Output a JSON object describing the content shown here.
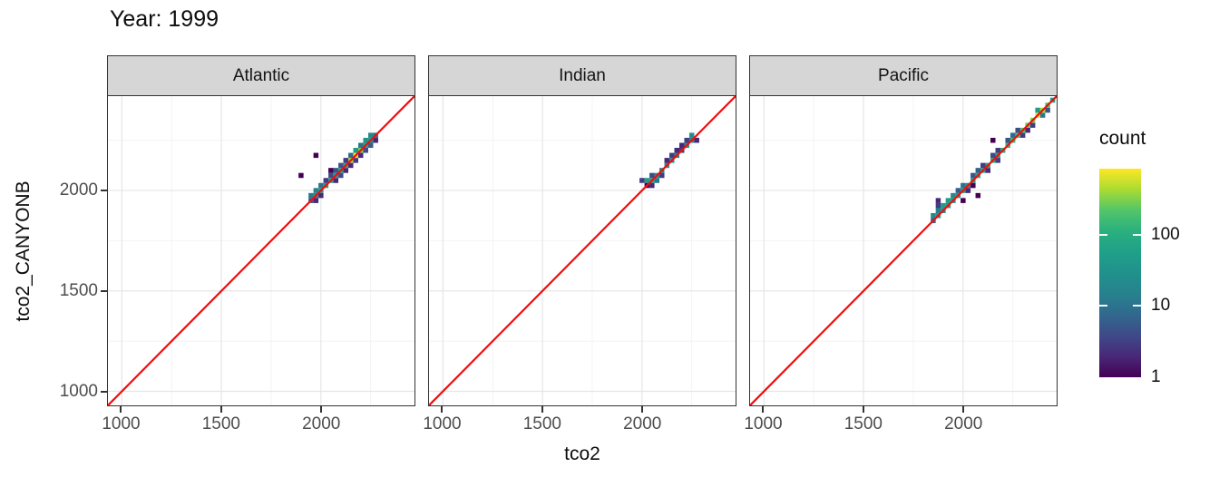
{
  "chart_data": {
    "type": "heatmap",
    "subtype": "geom_bin2d_facets",
    "title": "Year: 1999",
    "xlabel": "tco2",
    "ylabel": "tco2_CANYONB",
    "facets": [
      "Atlantic",
      "Indian",
      "Pacific"
    ],
    "x_ticks": [
      1000,
      1500,
      2000
    ],
    "y_ticks": [
      1000,
      1500,
      2000
    ],
    "minor_gridlines": [
      1250,
      1750,
      2250
    ],
    "xlim": [
      930,
      2470
    ],
    "ylim": [
      930,
      2470
    ],
    "binwidth": 25,
    "grid": true,
    "identity_line": {
      "slope": 1,
      "intercept": 0,
      "color": "#f20d0d"
    },
    "legend": {
      "title": "count",
      "position": "right",
      "scale": "log10",
      "max": 850,
      "ticks": [
        100,
        10,
        1
      ],
      "tick_labels": [
        "100",
        "10",
        "1"
      ],
      "palette": "viridis"
    },
    "panels": [
      {
        "facet": "Atlantic",
        "bins": [
          [
            1950,
            1950,
            5
          ],
          [
            1950,
            1975,
            12
          ],
          [
            1975,
            1975,
            30
          ],
          [
            1975,
            2000,
            15
          ],
          [
            1975,
            1950,
            2
          ],
          [
            2000,
            1975,
            2
          ],
          [
            2000,
            2000,
            40
          ],
          [
            2000,
            2025,
            10
          ],
          [
            2025,
            2025,
            55
          ],
          [
            2025,
            2050,
            3
          ],
          [
            2050,
            2050,
            50
          ],
          [
            2050,
            2075,
            4
          ],
          [
            2050,
            2100,
            1
          ],
          [
            2075,
            2050,
            2
          ],
          [
            2075,
            2075,
            65
          ],
          [
            2075,
            2100,
            5
          ],
          [
            2100,
            2075,
            4
          ],
          [
            2100,
            2100,
            75
          ],
          [
            2100,
            2125,
            5
          ],
          [
            2125,
            2100,
            2
          ],
          [
            2125,
            2125,
            110
          ],
          [
            2125,
            2150,
            3
          ],
          [
            2150,
            2125,
            2
          ],
          [
            2150,
            2150,
            400
          ],
          [
            2150,
            2175,
            8
          ],
          [
            2175,
            2150,
            3
          ],
          [
            2175,
            2175,
            850
          ],
          [
            2175,
            2200,
            40
          ],
          [
            2200,
            2175,
            2
          ],
          [
            2200,
            2200,
            300
          ],
          [
            2200,
            2225,
            10
          ],
          [
            2225,
            2200,
            4
          ],
          [
            2225,
            2225,
            80
          ],
          [
            2225,
            2250,
            30
          ],
          [
            2250,
            2225,
            6
          ],
          [
            2250,
            2250,
            45
          ],
          [
            2250,
            2275,
            20
          ],
          [
            2275,
            2250,
            2
          ],
          [
            2275,
            2275,
            10
          ],
          [
            1900,
            2075,
            1
          ],
          [
            1975,
            2175,
            1
          ]
        ]
      },
      {
        "facet": "Indian",
        "bins": [
          [
            2000,
            2050,
            3
          ],
          [
            2025,
            2050,
            45
          ],
          [
            2025,
            2025,
            1
          ],
          [
            2050,
            2050,
            70
          ],
          [
            2050,
            2025,
            2
          ],
          [
            2050,
            2075,
            4
          ],
          [
            2075,
            2050,
            12
          ],
          [
            2075,
            2075,
            40
          ],
          [
            2100,
            2075,
            3
          ],
          [
            2100,
            2100,
            18
          ],
          [
            2125,
            2125,
            30
          ],
          [
            2125,
            2150,
            2
          ],
          [
            2150,
            2150,
            35
          ],
          [
            2150,
            2175,
            3
          ],
          [
            2175,
            2175,
            22
          ],
          [
            2175,
            2200,
            2
          ],
          [
            2200,
            2200,
            3
          ],
          [
            2200,
            2225,
            2
          ],
          [
            2225,
            2225,
            35
          ],
          [
            2225,
            2250,
            3
          ],
          [
            2250,
            2250,
            15
          ],
          [
            2250,
            2275,
            28
          ],
          [
            2275,
            2250,
            2
          ]
        ]
      },
      {
        "facet": "Pacific",
        "bins": [
          [
            1850,
            1850,
            8
          ],
          [
            1850,
            1875,
            20
          ],
          [
            1875,
            1875,
            40
          ],
          [
            1875,
            1900,
            15
          ],
          [
            1875,
            1925,
            3
          ],
          [
            1875,
            1950,
            2
          ],
          [
            1900,
            1900,
            30
          ],
          [
            1900,
            1925,
            50
          ],
          [
            1925,
            1925,
            40
          ],
          [
            1925,
            1950,
            55
          ],
          [
            1950,
            1950,
            30
          ],
          [
            1950,
            1975,
            20
          ],
          [
            1975,
            1975,
            50
          ],
          [
            1975,
            2000,
            6
          ],
          [
            2000,
            1950,
            1
          ],
          [
            2000,
            2000,
            40
          ],
          [
            2000,
            2025,
            10
          ],
          [
            2025,
            2000,
            2
          ],
          [
            2025,
            2025,
            30
          ],
          [
            2050,
            2025,
            1
          ],
          [
            2050,
            2050,
            55
          ],
          [
            2050,
            2075,
            5
          ],
          [
            2075,
            1975,
            1
          ],
          [
            2075,
            2075,
            80
          ],
          [
            2075,
            2100,
            6
          ],
          [
            2100,
            2100,
            65
          ],
          [
            2100,
            2125,
            3
          ],
          [
            2125,
            2100,
            2
          ],
          [
            2125,
            2125,
            85
          ],
          [
            2150,
            2150,
            95
          ],
          [
            2150,
            2175,
            4
          ],
          [
            2150,
            2250,
            1
          ],
          [
            2175,
            2150,
            3
          ],
          [
            2175,
            2175,
            105
          ],
          [
            2175,
            2200,
            3
          ],
          [
            2200,
            2200,
            120
          ],
          [
            2225,
            2225,
            140
          ],
          [
            2225,
            2250,
            5
          ],
          [
            2250,
            2250,
            160
          ],
          [
            2250,
            2275,
            8
          ],
          [
            2275,
            2275,
            190
          ],
          [
            2275,
            2300,
            4
          ],
          [
            2300,
            2275,
            3
          ],
          [
            2300,
            2300,
            230
          ],
          [
            2325,
            2300,
            2
          ],
          [
            2325,
            2325,
            280
          ],
          [
            2350,
            2325,
            3
          ],
          [
            2350,
            2350,
            330
          ],
          [
            2375,
            2375,
            700
          ],
          [
            2375,
            2400,
            50
          ],
          [
            2400,
            2375,
            12
          ],
          [
            2400,
            2400,
            450
          ],
          [
            2425,
            2400,
            5
          ],
          [
            2425,
            2425,
            220
          ],
          [
            2450,
            2450,
            60
          ]
        ]
      }
    ]
  },
  "colors": {
    "background": "#ffffff",
    "panel_border": "#333333",
    "strip_fill": "#d6d6d6",
    "grid_major": "#e6e6e6",
    "grid_minor": "#efefef",
    "axis_text": "#4d4d4d",
    "tick_mark": "#333333",
    "identity_line": "#f20d0d",
    "viridis": [
      "#440154",
      "#482878",
      "#3e4a89",
      "#31688e",
      "#26828e",
      "#21918c",
      "#1fa088",
      "#2ab07f",
      "#52c569",
      "#a9dc32",
      "#fde725"
    ]
  }
}
